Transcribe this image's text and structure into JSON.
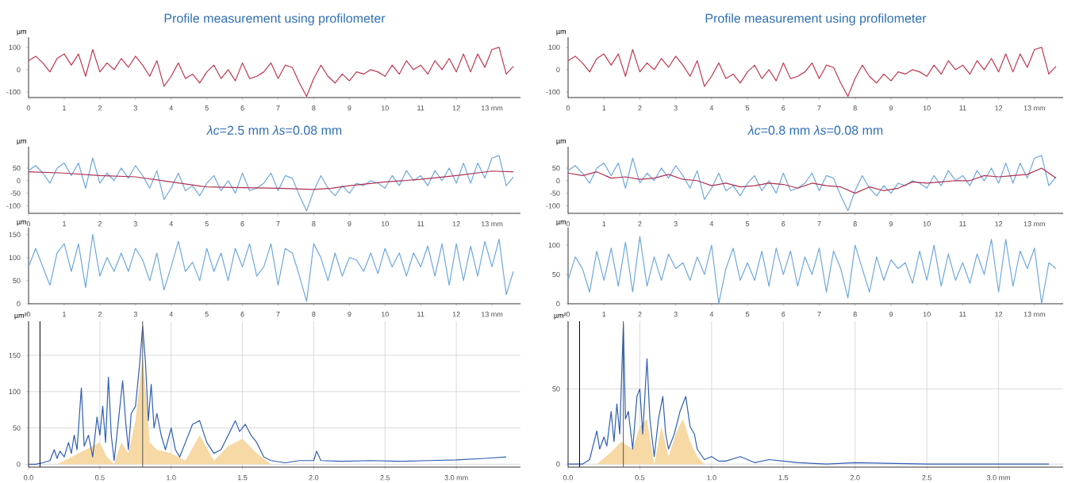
{
  "chart_data": [
    {
      "type": "line",
      "title": "Profile measurement using profilometer",
      "ylabel": "µm",
      "x": [
        0,
        0.2,
        0.4,
        0.6,
        0.8,
        1.0,
        1.2,
        1.4,
        1.6,
        1.8,
        2.0,
        2.2,
        2.4,
        2.6,
        2.8,
        3.0,
        3.2,
        3.4,
        3.6,
        3.8,
        4.0,
        4.2,
        4.4,
        4.6,
        4.8,
        5.0,
        5.2,
        5.4,
        5.6,
        5.8,
        6.0,
        6.2,
        6.4,
        6.6,
        6.8,
        7.0,
        7.2,
        7.4,
        7.6,
        7.8,
        8.0,
        8.2,
        8.4,
        8.6,
        8.8,
        9.0,
        9.2,
        9.4,
        9.6,
        9.8,
        10.0,
        10.2,
        10.4,
        10.6,
        10.8,
        11.0,
        11.2,
        11.4,
        11.6,
        11.8,
        12.0,
        12.2,
        12.4,
        12.6,
        12.8,
        13.0,
        13.2,
        13.4,
        13.6
      ],
      "series": [
        {
          "color": "#c0394f",
          "values": [
            40,
            60,
            30,
            -10,
            50,
            70,
            20,
            70,
            -30,
            90,
            -10,
            30,
            0,
            50,
            10,
            60,
            20,
            -30,
            40,
            -75,
            -30,
            30,
            -40,
            -20,
            -60,
            -10,
            20,
            -40,
            0,
            -50,
            30,
            -40,
            -30,
            -10,
            30,
            -40,
            20,
            10,
            -60,
            -120,
            -40,
            20,
            -30,
            -60,
            -20,
            -50,
            -10,
            -20,
            0,
            -10,
            -30,
            20,
            -20,
            40,
            0,
            20,
            -20,
            40,
            0,
            50,
            -10,
            70,
            -10,
            70,
            10,
            90,
            100,
            -20,
            15
          ]
        }
      ],
      "xlim": [
        0,
        13.8
      ],
      "ylim": [
        -125,
        145
      ],
      "xticks": [
        0,
        1,
        2,
        3,
        4,
        5,
        6,
        7,
        8,
        9,
        10,
        11,
        12,
        {
          "value": 13,
          "label": "13 mm"
        }
      ],
      "yticks": [
        -100,
        0,
        100
      ]
    },
    {
      "type": "line",
      "title": "Profile measurement using profilometer",
      "ylabel": "µm",
      "x": [
        0,
        0.2,
        0.4,
        0.6,
        0.8,
        1.0,
        1.2,
        1.4,
        1.6,
        1.8,
        2.0,
        2.2,
        2.4,
        2.6,
        2.8,
        3.0,
        3.2,
        3.4,
        3.6,
        3.8,
        4.0,
        4.2,
        4.4,
        4.6,
        4.8,
        5.0,
        5.2,
        5.4,
        5.6,
        5.8,
        6.0,
        6.2,
        6.4,
        6.6,
        6.8,
        7.0,
        7.2,
        7.4,
        7.6,
        7.8,
        8.0,
        8.2,
        8.4,
        8.6,
        8.8,
        9.0,
        9.2,
        9.4,
        9.6,
        9.8,
        10.0,
        10.2,
        10.4,
        10.6,
        10.8,
        11.0,
        11.2,
        11.4,
        11.6,
        11.8,
        12.0,
        12.2,
        12.4,
        12.6,
        12.8,
        13.0,
        13.2,
        13.4,
        13.6
      ],
      "series": [
        {
          "color": "#c0394f",
          "values": [
            40,
            60,
            30,
            -10,
            50,
            70,
            20,
            70,
            -30,
            90,
            -10,
            30,
            0,
            50,
            10,
            60,
            20,
            -30,
            40,
            -75,
            -30,
            30,
            -40,
            -20,
            -60,
            -10,
            20,
            -40,
            0,
            -50,
            30,
            -40,
            -30,
            -10,
            30,
            -40,
            20,
            10,
            -60,
            -120,
            -40,
            20,
            -30,
            -60,
            -20,
            -50,
            -10,
            -20,
            0,
            -10,
            -30,
            20,
            -20,
            40,
            0,
            20,
            -20,
            40,
            0,
            50,
            -10,
            70,
            -10,
            70,
            10,
            90,
            100,
            -20,
            15
          ]
        }
      ],
      "xlim": [
        0,
        13.8
      ],
      "ylim": [
        -125,
        145
      ],
      "xticks": [
        0,
        1,
        2,
        3,
        4,
        5,
        6,
        7,
        8,
        9,
        10,
        11,
        12,
        {
          "value": 13,
          "label": "13 mm"
        }
      ],
      "yticks": [
        -100,
        0,
        100
      ]
    },
    {
      "type": "line",
      "title": "*λc*=2.5 mm *λs*=0.08 mm",
      "ylabel": "µm",
      "x": [
        0,
        0.2,
        0.4,
        0.6,
        0.8,
        1.0,
        1.2,
        1.4,
        1.6,
        1.8,
        2.0,
        2.2,
        2.4,
        2.6,
        2.8,
        3.0,
        3.2,
        3.4,
        3.6,
        3.8,
        4.0,
        4.2,
        4.4,
        4.6,
        4.8,
        5.0,
        5.2,
        5.4,
        5.6,
        5.8,
        6.0,
        6.2,
        6.4,
        6.6,
        6.8,
        7.0,
        7.2,
        7.4,
        7.6,
        7.8,
        8.0,
        8.2,
        8.4,
        8.6,
        8.8,
        9.0,
        9.2,
        9.4,
        9.6,
        9.8,
        10.0,
        10.2,
        10.4,
        10.6,
        10.8,
        11.0,
        11.2,
        11.4,
        11.6,
        11.8,
        12.0,
        12.2,
        12.4,
        12.6,
        12.8,
        13.0,
        13.2,
        13.4,
        13.6
      ],
      "series": [
        {
          "color": "#6fa8dc",
          "values": [
            40,
            60,
            30,
            -10,
            50,
            70,
            20,
            70,
            -30,
            90,
            -10,
            30,
            0,
            50,
            10,
            60,
            20,
            -30,
            40,
            -75,
            -30,
            30,
            -40,
            -20,
            -60,
            -10,
            20,
            -40,
            0,
            -50,
            30,
            -40,
            -30,
            -10,
            30,
            -40,
            20,
            10,
            -60,
            -120,
            -40,
            20,
            -30,
            -60,
            -20,
            -50,
            -10,
            -20,
            0,
            -10,
            -30,
            20,
            -20,
            40,
            0,
            20,
            -20,
            40,
            0,
            50,
            -10,
            70,
            -10,
            70,
            10,
            90,
            100,
            -20,
            15
          ]
        },
        {
          "color": "#b03050",
          "x": [
            0,
            1,
            2,
            3,
            4,
            5,
            6,
            7,
            8,
            8.5,
            9,
            10,
            11,
            12,
            13,
            13.6
          ],
          "values": [
            35,
            30,
            20,
            15,
            -5,
            -25,
            -28,
            -30,
            -35,
            -30,
            -20,
            -5,
            5,
            20,
            38,
            35
          ]
        }
      ],
      "xlim": [
        0,
        13.8
      ],
      "ylim": [
        -130,
        135
      ],
      "xticks": [
        0,
        1,
        2,
        3,
        4,
        5,
        6,
        7,
        8,
        9,
        10,
        11,
        12,
        {
          "value": 13,
          "label": "13 mm"
        }
      ],
      "yticks": [
        -100,
        -50,
        0,
        50
      ]
    },
    {
      "type": "line",
      "title": "*λc*=0.8 mm  *λs*=0.08 mm",
      "ylabel": "µm",
      "x": [
        0,
        0.2,
        0.4,
        0.6,
        0.8,
        1.0,
        1.2,
        1.4,
        1.6,
        1.8,
        2.0,
        2.2,
        2.4,
        2.6,
        2.8,
        3.0,
        3.2,
        3.4,
        3.6,
        3.8,
        4.0,
        4.2,
        4.4,
        4.6,
        4.8,
        5.0,
        5.2,
        5.4,
        5.6,
        5.8,
        6.0,
        6.2,
        6.4,
        6.6,
        6.8,
        7.0,
        7.2,
        7.4,
        7.6,
        7.8,
        8.0,
        8.2,
        8.4,
        8.6,
        8.8,
        9.0,
        9.2,
        9.4,
        9.6,
        9.8,
        10.0,
        10.2,
        10.4,
        10.6,
        10.8,
        11.0,
        11.2,
        11.4,
        11.6,
        11.8,
        12.0,
        12.2,
        12.4,
        12.6,
        12.8,
        13.0,
        13.2,
        13.4,
        13.6
      ],
      "series": [
        {
          "color": "#6fa8dc",
          "values": [
            40,
            60,
            30,
            -10,
            50,
            70,
            20,
            70,
            -30,
            90,
            -10,
            30,
            0,
            50,
            10,
            60,
            20,
            -30,
            40,
            -75,
            -30,
            30,
            -40,
            -20,
            -60,
            -10,
            20,
            -40,
            0,
            -50,
            30,
            -40,
            -30,
            -10,
            30,
            -40,
            20,
            10,
            -60,
            -120,
            -40,
            20,
            -30,
            -60,
            -20,
            -50,
            -10,
            -20,
            0,
            -10,
            -30,
            20,
            -20,
            40,
            0,
            20,
            -20,
            40,
            0,
            50,
            -10,
            70,
            -10,
            70,
            10,
            90,
            100,
            -20,
            15
          ]
        },
        {
          "color": "#b03050",
          "x": [
            0,
            0.4,
            0.8,
            1.2,
            1.6,
            2.0,
            2.4,
            2.8,
            3.2,
            3.6,
            4.0,
            4.4,
            4.8,
            5.2,
            5.6,
            6.0,
            6.4,
            6.8,
            7.2,
            7.6,
            8.0,
            8.4,
            8.8,
            9.2,
            9.6,
            10.0,
            10.4,
            10.8,
            11.2,
            11.6,
            12.0,
            12.4,
            12.8,
            13.2,
            13.6
          ],
          "values": [
            30,
            20,
            35,
            10,
            15,
            5,
            10,
            25,
            5,
            0,
            -20,
            -10,
            -25,
            -20,
            -10,
            -15,
            -30,
            -10,
            -20,
            -25,
            -50,
            -25,
            -40,
            -30,
            -5,
            -10,
            -5,
            0,
            0,
            20,
            15,
            20,
            25,
            50,
            10
          ]
        }
      ],
      "xlim": [
        0,
        13.8
      ],
      "ylim": [
        -130,
        135
      ],
      "xticks": [
        0,
        1,
        2,
        3,
        4,
        5,
        6,
        7,
        8,
        9,
        10,
        11,
        12,
        {
          "value": 13,
          "label": "13 mm"
        }
      ],
      "yticks": [
        -100,
        -50,
        0,
        50
      ]
    },
    {
      "type": "line",
      "ylabel": "µm",
      "x": [
        0,
        0.2,
        0.4,
        0.6,
        0.8,
        1.0,
        1.2,
        1.4,
        1.6,
        1.8,
        2.0,
        2.2,
        2.4,
        2.6,
        2.8,
        3.0,
        3.2,
        3.4,
        3.6,
        3.8,
        4.0,
        4.2,
        4.4,
        4.6,
        4.8,
        5.0,
        5.2,
        5.4,
        5.6,
        5.8,
        6.0,
        6.2,
        6.4,
        6.6,
        6.8,
        7.0,
        7.2,
        7.4,
        7.6,
        7.8,
        8.0,
        8.2,
        8.4,
        8.6,
        8.8,
        9.0,
        9.2,
        9.4,
        9.6,
        9.8,
        10.0,
        10.2,
        10.4,
        10.6,
        10.8,
        11.0,
        11.2,
        11.4,
        11.6,
        11.8,
        12.0,
        12.2,
        12.4,
        12.6,
        12.8,
        13.0,
        13.2,
        13.4,
        13.6
      ],
      "series": [
        {
          "color": "#6fa8dc",
          "values": [
            80,
            120,
            80,
            40,
            110,
            130,
            70,
            130,
            35,
            150,
            60,
            100,
            70,
            110,
            70,
            120,
            95,
            50,
            110,
            30,
            80,
            135,
            70,
            90,
            50,
            120,
            70,
            110,
            50,
            120,
            80,
            130,
            60,
            80,
            130,
            40,
            120,
            110,
            60,
            5,
            130,
            100,
            50,
            110,
            60,
            100,
            95,
            70,
            110,
            65,
            120,
            80,
            110,
            60,
            110,
            80,
            125,
            60,
            130,
            40,
            130,
            50,
            125,
            60,
            135,
            80,
            140,
            20,
            70
          ]
        }
      ],
      "xlim": [
        0,
        13.8
      ],
      "ylim": [
        0,
        165
      ],
      "xticks": [
        0,
        1,
        2,
        3,
        4,
        5,
        6,
        7,
        8,
        9,
        10,
        11,
        12,
        {
          "value": 13,
          "label": "13 mm"
        }
      ],
      "yticks": [
        0,
        50,
        100,
        150
      ]
    },
    {
      "type": "line",
      "ylabel": "µm",
      "x": [
        0,
        0.2,
        0.4,
        0.6,
        0.8,
        1.0,
        1.2,
        1.4,
        1.6,
        1.8,
        2.0,
        2.2,
        2.4,
        2.6,
        2.8,
        3.0,
        3.2,
        3.4,
        3.6,
        3.8,
        4.0,
        4.2,
        4.4,
        4.6,
        4.8,
        5.0,
        5.2,
        5.4,
        5.6,
        5.8,
        6.0,
        6.2,
        6.4,
        6.6,
        6.8,
        7.0,
        7.2,
        7.4,
        7.6,
        7.8,
        8.0,
        8.2,
        8.4,
        8.6,
        8.8,
        9.0,
        9.2,
        9.4,
        9.6,
        9.8,
        10.0,
        10.2,
        10.4,
        10.6,
        10.8,
        11.0,
        11.2,
        11.4,
        11.6,
        11.8,
        12.0,
        12.2,
        12.4,
        12.6,
        12.8,
        13.0,
        13.2,
        13.4,
        13.6
      ],
      "series": [
        {
          "color": "#6fa8dc",
          "values": [
            40,
            80,
            60,
            20,
            90,
            40,
            95,
            30,
            105,
            20,
            115,
            30,
            80,
            40,
            85,
            60,
            70,
            40,
            80,
            50,
            100,
            0,
            60,
            95,
            40,
            70,
            40,
            90,
            30,
            95,
            50,
            90,
            30,
            80,
            50,
            95,
            20,
            90,
            60,
            10,
            100,
            60,
            20,
            80,
            40,
            75,
            60,
            70,
            35,
            90,
            40,
            100,
            30,
            85,
            40,
            70,
            35,
            85,
            50,
            110,
            20,
            110,
            30,
            90,
            60,
            95,
            0,
            70,
            60
          ]
        }
      ],
      "xlim": [
        0,
        13.8
      ],
      "ylim": [
        0,
        130
      ],
      "xticks": [
        0,
        1,
        2,
        3,
        4,
        5,
        6,
        7,
        8,
        9,
        10,
        11,
        12,
        {
          "value": 13,
          "label": "13 mm"
        }
      ],
      "yticks": [
        0,
        50,
        100
      ]
    },
    {
      "type": "line",
      "ylabel": "µm²",
      "grid": true,
      "series": [
        {
          "type": "area",
          "color": "#f6d9a4",
          "x": [
            0.2,
            0.3,
            0.4,
            0.5,
            0.55,
            0.6,
            0.65,
            0.7,
            0.75,
            0.8,
            0.85,
            0.9,
            1.0,
            1.1,
            1.2,
            1.3,
            1.4,
            1.5,
            1.6,
            1.7
          ],
          "values": [
            0,
            10,
            20,
            30,
            10,
            0,
            30,
            15,
            60,
            150,
            30,
            20,
            15,
            5,
            40,
            5,
            25,
            35,
            15,
            0
          ]
        },
        {
          "type": "line",
          "color": "#2f5fb5",
          "x": [
            0,
            0.05,
            0.1,
            0.15,
            0.18,
            0.2,
            0.22,
            0.25,
            0.28,
            0.3,
            0.32,
            0.34,
            0.37,
            0.39,
            0.42,
            0.45,
            0.48,
            0.5,
            0.52,
            0.54,
            0.56,
            0.58,
            0.6,
            0.63,
            0.66,
            0.68,
            0.7,
            0.72,
            0.75,
            0.78,
            0.8,
            0.82,
            0.84,
            0.86,
            0.88,
            0.9,
            0.93,
            0.96,
            1.0,
            1.03,
            1.06,
            1.1,
            1.15,
            1.2,
            1.25,
            1.3,
            1.35,
            1.4,
            1.45,
            1.48,
            1.52,
            1.56,
            1.6,
            1.65,
            1.7,
            1.8,
            1.9,
            2.0,
            2.02,
            2.05,
            2.2,
            2.4,
            2.6,
            2.8,
            3.0,
            3.2,
            3.35
          ],
          "values": [
            0,
            0,
            2,
            5,
            20,
            8,
            18,
            10,
            30,
            15,
            40,
            20,
            105,
            25,
            40,
            10,
            65,
            40,
            80,
            30,
            120,
            40,
            5,
            60,
            115,
            60,
            20,
            70,
            80,
            140,
            190,
            140,
            60,
            110,
            50,
            70,
            40,
            20,
            50,
            20,
            10,
            30,
            55,
            60,
            30,
            15,
            20,
            40,
            60,
            45,
            55,
            40,
            30,
            10,
            5,
            2,
            5,
            5,
            18,
            5,
            4,
            5,
            4,
            5,
            6,
            8,
            10
          ]
        }
      ],
      "xlim": [
        0,
        3.45
      ],
      "ylim": [
        -4,
        197
      ],
      "xticks": [
        {
          "value": 0,
          "label": "0.0"
        },
        {
          "value": 0.5,
          "label": "0.5"
        },
        {
          "value": 1,
          "label": "1.0"
        },
        {
          "value": 1.5,
          "label": "1.5"
        },
        {
          "value": 2,
          "label": "2.0"
        },
        {
          "value": 2.5,
          "label": "2.5"
        },
        {
          "value": 3,
          "label": "3.0 mm"
        }
      ],
      "yticks": [
        0,
        50,
        100,
        150
      ],
      "ref_lines": [
        {
          "axis": "x",
          "value": 0.08,
          "color": "#000000"
        },
        {
          "axis": "x",
          "value": 0.8,
          "color": "#555555"
        }
      ]
    },
    {
      "type": "line",
      "ylabel": "µm²",
      "grid": true,
      "series": [
        {
          "type": "area",
          "color": "#f6d9a4",
          "x": [
            0.2,
            0.3,
            0.37,
            0.45,
            0.5,
            0.55,
            0.6,
            0.65,
            0.7,
            0.75,
            0.8,
            0.85,
            0.9,
            0.95
          ],
          "values": [
            0,
            8,
            15,
            10,
            25,
            30,
            0,
            25,
            5,
            20,
            30,
            15,
            5,
            0
          ]
        },
        {
          "type": "line",
          "color": "#2f5fb5",
          "x": [
            0,
            0.1,
            0.15,
            0.2,
            0.22,
            0.25,
            0.27,
            0.3,
            0.32,
            0.34,
            0.36,
            0.385,
            0.4,
            0.42,
            0.45,
            0.48,
            0.5,
            0.52,
            0.55,
            0.57,
            0.6,
            0.63,
            0.66,
            0.68,
            0.7,
            0.74,
            0.78,
            0.82,
            0.85,
            0.88,
            0.9,
            0.95,
            1.0,
            1.05,
            1.1,
            1.2,
            1.3,
            1.4,
            1.5,
            1.6,
            1.8,
            2.0,
            2.5,
            3.0,
            3.35
          ],
          "values": [
            0,
            0,
            3,
            22,
            10,
            18,
            12,
            35,
            15,
            40,
            20,
            93,
            30,
            35,
            10,
            45,
            50,
            20,
            70,
            30,
            5,
            30,
            45,
            20,
            10,
            20,
            35,
            45,
            25,
            20,
            10,
            3,
            5,
            2,
            2,
            5,
            1,
            3,
            2,
            1,
            0,
            1,
            0,
            0,
            0
          ]
        }
      ],
      "xlim": [
        0,
        3.45
      ],
      "ylim": [
        -2,
        95
      ],
      "xticks": [
        {
          "value": 0,
          "label": "0.0"
        },
        {
          "value": 0.5,
          "label": "0.5"
        },
        {
          "value": 1,
          "label": "1.0"
        },
        {
          "value": 1.5,
          "label": "1.5"
        },
        {
          "value": 2,
          "label": "2.0"
        },
        {
          "value": 2.5,
          "label": "2.5"
        },
        {
          "value": 3,
          "label": "3.0 mm"
        }
      ],
      "yticks": [
        0,
        50
      ],
      "ref_lines": [
        {
          "axis": "x",
          "value": 0.08,
          "color": "#000000"
        },
        {
          "axis": "x",
          "value": 0.385,
          "color": "#555555"
        }
      ]
    }
  ]
}
